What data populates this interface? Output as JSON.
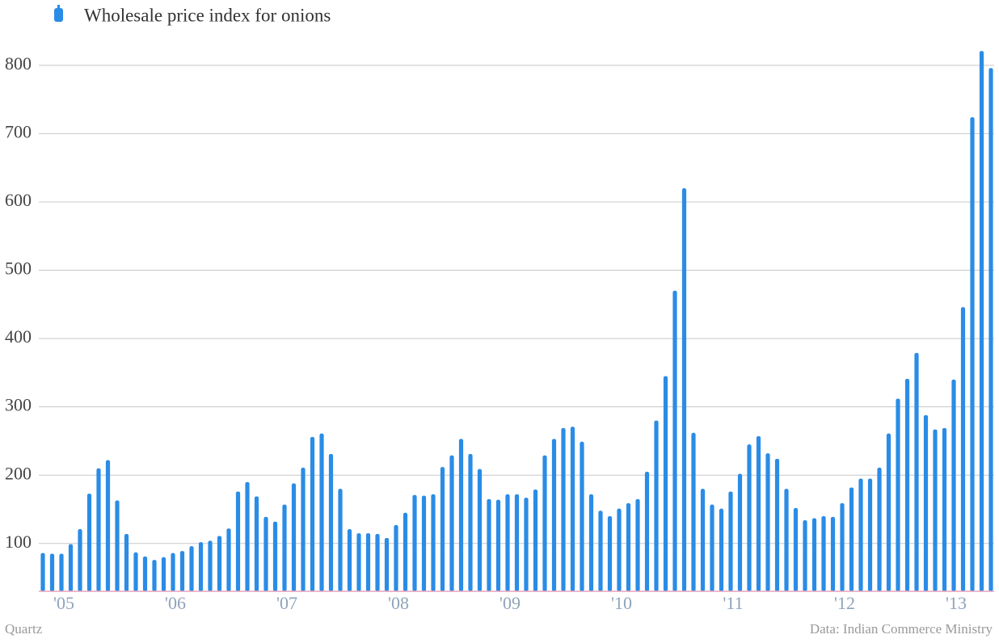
{
  "chart_data": {
    "type": "bar",
    "legend": "Wholesale price index for onions",
    "source_left": "Quartz",
    "source_right": "Data: Indian Commerce Ministry",
    "color": "#2a8ce6",
    "grid": true,
    "categories": [
      null,
      null,
      "'05",
      null,
      null,
      null,
      null,
      null,
      null,
      null,
      null,
      null,
      null,
      null,
      "'06",
      null,
      null,
      null,
      null,
      null,
      null,
      null,
      null,
      null,
      null,
      null,
      "'07",
      null,
      null,
      null,
      null,
      null,
      null,
      null,
      null,
      null,
      null,
      null,
      "'08",
      null,
      null,
      null,
      null,
      null,
      null,
      null,
      null,
      null,
      null,
      null,
      "'09",
      null,
      null,
      null,
      null,
      null,
      null,
      null,
      null,
      null,
      null,
      null,
      "'10",
      null,
      null,
      null,
      null,
      null,
      null,
      null,
      null,
      null,
      null,
      null,
      "'11",
      null,
      null,
      null,
      null,
      null,
      null,
      null,
      null,
      null,
      null,
      null,
      "'12",
      null,
      null,
      null,
      null,
      null,
      null,
      null,
      null,
      null,
      null,
      null,
      "'13",
      null,
      null,
      null,
      null
    ],
    "values": [
      86,
      85,
      85,
      99,
      121,
      173,
      210,
      222,
      163,
      114,
      87,
      81,
      76,
      80,
      86,
      89,
      96,
      102,
      104,
      111,
      122,
      176,
      190,
      169,
      139,
      132,
      157,
      188,
      211,
      256,
      261,
      231,
      180,
      121,
      115,
      115,
      114,
      108,
      127,
      145,
      171,
      170,
      172,
      212,
      229,
      253,
      231,
      209,
      165,
      164,
      172,
      172,
      167,
      179,
      229,
      253,
      269,
      271,
      249,
      172,
      148,
      140,
      151,
      159,
      165,
      205,
      280,
      345,
      470,
      620,
      262,
      180,
      157,
      151,
      176,
      202,
      245,
      257,
      232,
      224,
      180,
      152,
      134,
      137,
      140,
      139,
      159,
      182,
      195,
      195,
      211,
      261,
      312,
      341,
      379,
      288,
      267,
      269,
      340,
      446,
      724,
      821,
      796
    ],
    "ylim": [
      30,
      840
    ],
    "yticks": [
      100,
      200,
      300,
      400,
      500,
      600,
      700,
      800
    ]
  }
}
